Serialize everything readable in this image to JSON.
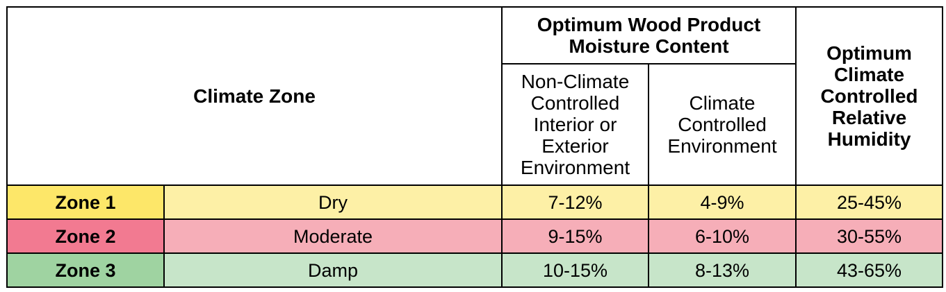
{
  "table": {
    "header": {
      "climate_zone": "Climate Zone",
      "optimum_moisture_line1": "Optimum Wood Product",
      "optimum_moisture_line2": "Moisture Content",
      "non_climate_controlled_lines": [
        "Non-Climate",
        "Controlled",
        "Interior or",
        "Exterior",
        "Environment"
      ],
      "climate_controlled_lines": [
        "Climate",
        "Controlled",
        "Environment"
      ],
      "relative_humidity_lines": [
        "Optimum",
        "Climate",
        "Controlled",
        "Relative",
        "Humidity"
      ]
    },
    "rows": [
      {
        "zone": "Zone 1",
        "climate": "Dry",
        "non_climate_moisture": "7-12%",
        "climate_moisture": "4-9%",
        "relative_humidity": "25-45%",
        "label_color": "#fde769",
        "row_color": "#fdf0a6"
      },
      {
        "zone": "Zone 2",
        "climate": "Moderate",
        "non_climate_moisture": "9-15%",
        "climate_moisture": "6-10%",
        "relative_humidity": "30-55%",
        "label_color": "#f27a91",
        "row_color": "#f6aeb8"
      },
      {
        "zone": "Zone 3",
        "climate": "Damp",
        "non_climate_moisture": "10-15%",
        "climate_moisture": "8-13%",
        "relative_humidity": "43-65%",
        "label_color": "#9fd3a1",
        "row_color": "#c7e5c9"
      }
    ]
  }
}
